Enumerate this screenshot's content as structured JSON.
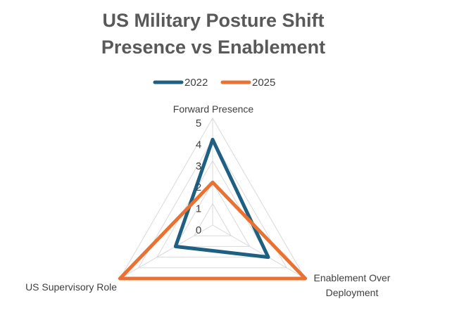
{
  "chart_data": {
    "type": "radar",
    "title": "US Military Posture Shift\nPresence vs Enablement",
    "categories": [
      "Forward Presence",
      "Enablement Over Deployment",
      "US Supervisory Role"
    ],
    "series": [
      {
        "name": "2022",
        "color": "#1f5f82",
        "values": [
          4,
          3,
          2
        ]
      },
      {
        "name": "2025",
        "color": "#e97132",
        "values": [
          2,
          5,
          5
        ]
      }
    ],
    "ylim": [
      0,
      5
    ],
    "yticks": [
      0,
      1,
      2,
      3,
      4,
      5
    ],
    "grid": true
  }
}
